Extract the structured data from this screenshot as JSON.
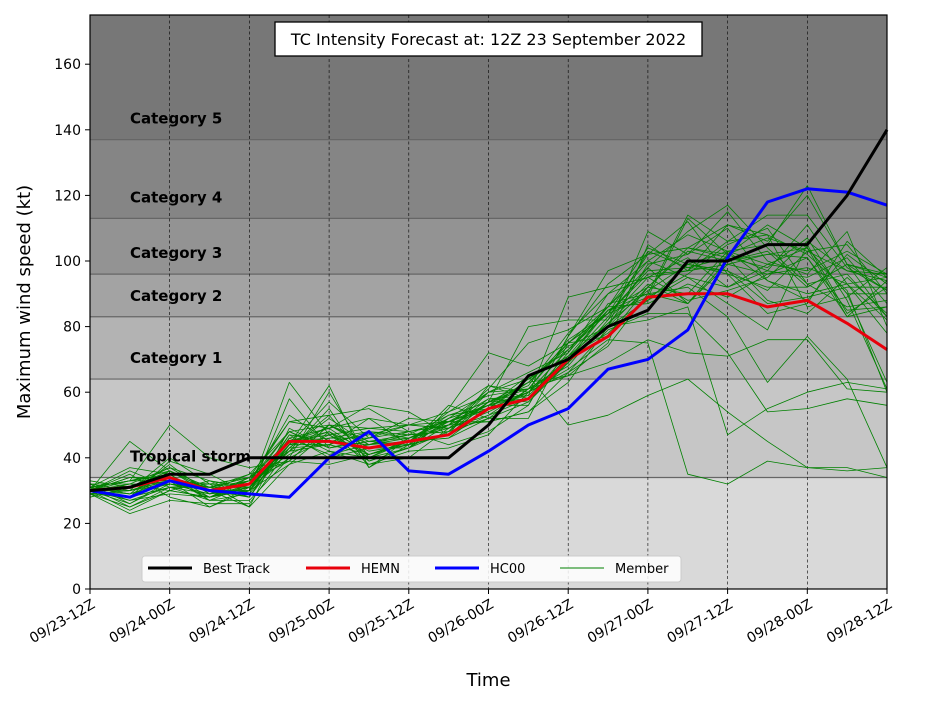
{
  "chart_data": {
    "type": "line",
    "title": "TC Intensity Forecast at: 12Z 23 September 2022",
    "xlabel": "Time",
    "ylabel": "Maximum wind speed (kt)",
    "ylim": [
      0,
      175
    ],
    "yticks": [
      0,
      20,
      40,
      60,
      80,
      100,
      120,
      140,
      160
    ],
    "x_ticks": [
      "09/23-12Z",
      "09/24-00Z",
      "09/24-12Z",
      "09/25-00Z",
      "09/25-12Z",
      "09/26-00Z",
      "09/26-12Z",
      "09/27-00Z",
      "09/27-12Z",
      "09/28-00Z",
      "09/28-12Z"
    ],
    "grid": "vertical dashed",
    "legend_position": "bottom-left",
    "bands": [
      {
        "name": "",
        "from": 0,
        "to": 34,
        "color": "#d9d9d9"
      },
      {
        "name": "Tropical storm",
        "from": 34,
        "to": 64,
        "color": "#c6c6c6"
      },
      {
        "name": "Category 1",
        "from": 64,
        "to": 83,
        "color": "#b3b3b3"
      },
      {
        "name": "Category 2",
        "from": 83,
        "to": 96,
        "color": "#a3a3a3"
      },
      {
        "name": "Category 3",
        "from": 96,
        "to": 113,
        "color": "#939393"
      },
      {
        "name": "Category 4",
        "from": 113,
        "to": 137,
        "color": "#858585"
      },
      {
        "name": "Category 5",
        "from": 137,
        "to": 175,
        "color": "#777777"
      }
    ],
    "series": [
      {
        "name": "Best Track",
        "color": "#000000",
        "width": 3,
        "values": [
          30,
          31,
          35,
          35,
          40,
          40,
          40,
          40,
          40,
          40,
          50,
          65,
          70,
          80,
          85,
          100,
          100,
          105,
          105,
          120,
          140
        ]
      },
      {
        "name": "HEMN",
        "color": "#e8000b",
        "width": 3,
        "values": [
          30,
          31,
          34,
          30,
          32,
          45,
          45,
          43,
          45,
          47,
          55,
          58,
          70,
          77,
          89,
          90,
          90,
          86,
          88,
          81,
          73
        ]
      },
      {
        "name": "HC00",
        "color": "#0000ff",
        "width": 3,
        "values": [
          30,
          28,
          33,
          30,
          29,
          28,
          40,
          48,
          36,
          35,
          42,
          50,
          55,
          67,
          70,
          79,
          101,
          118,
          122,
          121,
          117
        ]
      },
      {
        "name": "Member",
        "color": "#008000",
        "width": 0.8,
        "members": [
          [
            31,
            33,
            36,
            29,
            30,
            63,
            47,
            41,
            44,
            51,
            56,
            59,
            89,
            92,
            95,
            97,
            106,
            114,
            114,
            98,
            91
          ],
          [
            29,
            25,
            31,
            27,
            27,
            40,
            60,
            40,
            45,
            46,
            55,
            58,
            71,
            85,
            92,
            104,
            101,
            98,
            107,
            88,
            61
          ],
          [
            30,
            35,
            28,
            25,
            31,
            43,
            44,
            48,
            47,
            48,
            60,
            66,
            72,
            86,
            98,
            109,
            117,
            104,
            93,
            96,
            83
          ],
          [
            32,
            30,
            40,
            32,
            31,
            45,
            49,
            52,
            44,
            56,
            52,
            61,
            75,
            84,
            89,
            113,
            102,
            97,
            95,
            101,
            87
          ],
          [
            28,
            31,
            33,
            30,
            25,
            49,
            43,
            45,
            46,
            52,
            56,
            63,
            65,
            75,
            105,
            97,
            111,
            108,
            102,
            91,
            60
          ],
          [
            30,
            27,
            31,
            29,
            33,
            41,
            47,
            49,
            48,
            44,
            48,
            56,
            77,
            93,
            102,
            104,
            102,
            107,
            103,
            97,
            96
          ],
          [
            31,
            29,
            38,
            29,
            34,
            42,
            55,
            37,
            44,
            47,
            57,
            63,
            75,
            84,
            96,
            97,
            99,
            102,
            101,
            83,
            86
          ],
          [
            30,
            26,
            33,
            28,
            32,
            53,
            45,
            47,
            50,
            49,
            58,
            57,
            70,
            80,
            109,
            102,
            115,
            100,
            96,
            109,
            80
          ],
          [
            32,
            32,
            32,
            31,
            28,
            46,
            41,
            44,
            45,
            54,
            62,
            58,
            69,
            87,
            90,
            92,
            83,
            63,
            77,
            64,
            37
          ],
          [
            29,
            28,
            36,
            30,
            30,
            38,
            48,
            38,
            42,
            43,
            47,
            60,
            73,
            86,
            100,
            108,
            103,
            105,
            123,
            99,
            83
          ],
          [
            30,
            34,
            33,
            28,
            31,
            43,
            52,
            44,
            46,
            49,
            54,
            60,
            70,
            85,
            88,
            95,
            92,
            99,
            104,
            90,
            63
          ],
          [
            31,
            33,
            35,
            27,
            29,
            58,
            43,
            46,
            48,
            50,
            60,
            64,
            71,
            81,
            93,
            87,
            102,
            111,
            104,
            83,
            94
          ],
          [
            30,
            30,
            34,
            31,
            33,
            39,
            50,
            49,
            50,
            51,
            56,
            56,
            77,
            97,
            102,
            104,
            111,
            106,
            120,
            99,
            91
          ],
          [
            29,
            23,
            27,
            26,
            26,
            43,
            53,
            55,
            48,
            50,
            51,
            54,
            66,
            74,
            90,
            114,
            106,
            108,
            86,
            89,
            98
          ],
          [
            31,
            25,
            30,
            28,
            30,
            45,
            47,
            39,
            43,
            48,
            52,
            52,
            75,
            77,
            92,
            90,
            103,
            94,
            90,
            93,
            78
          ],
          [
            30,
            24,
            30,
            28,
            33,
            51,
            49,
            41,
            45,
            53,
            57,
            62,
            78,
            90,
            100,
            95,
            87,
            79,
            105,
            84,
            92
          ],
          [
            30,
            28,
            39,
            35,
            29,
            44,
            57,
            46,
            50,
            54,
            59,
            61,
            76,
            84,
            97,
            98,
            101,
            88,
            84,
            95,
            84
          ],
          [
            33,
            31,
            37,
            33,
            28,
            47,
            40,
            43,
            43,
            50,
            61,
            75,
            79,
            86,
            104,
            99,
            96,
            92,
            92,
            99,
            95
          ],
          [
            31,
            29,
            32,
            29,
            31,
            45,
            46,
            48,
            46,
            50,
            56,
            60,
            70,
            80,
            99,
            102,
            110,
            94,
            88,
            102,
            93
          ],
          [
            30,
            32,
            37,
            30,
            35,
            48,
            50,
            45,
            44,
            47,
            62,
            60,
            73,
            84,
            102,
            112,
            96,
            84,
            87,
            106,
            95
          ],
          [
            31,
            27,
            29,
            28,
            31,
            40,
            46,
            46,
            52,
            51,
            58,
            59,
            70,
            83,
            98,
            87,
            100,
            103,
            92,
            99,
            96
          ],
          [
            29,
            30,
            34,
            27,
            32,
            48,
            43,
            45,
            47,
            53,
            55,
            63,
            74,
            80,
            88,
            99,
            97,
            91,
            103,
            105,
            90
          ],
          [
            30,
            31,
            36,
            30,
            28,
            44,
            44,
            52,
            50,
            49,
            57,
            58,
            72,
            90,
            95,
            101,
            92,
            97,
            111,
            93,
            82
          ],
          [
            31,
            37,
            35,
            28,
            34,
            42,
            50,
            43,
            45,
            52,
            60,
            61,
            69,
            81,
            91,
            99,
            103,
            99,
            97,
            103,
            96
          ],
          [
            30,
            30,
            33,
            32,
            34,
            45,
            48,
            42,
            44,
            47,
            53,
            58,
            71,
            78,
            89,
            96,
            105,
            110,
            93,
            86,
            88
          ],
          [
            29,
            32,
            30,
            33,
            31,
            44,
            62,
            37,
            46,
            51,
            55,
            64,
            73,
            85,
            90,
            87,
            99,
            96,
            98,
            93,
            95
          ],
          [
            30,
            45,
            36,
            31,
            35,
            39,
            38,
            41,
            45,
            46,
            52,
            57,
            69,
            80,
            92,
            103,
            100,
            102,
            104,
            90,
            90
          ],
          [
            32,
            26,
            32,
            30,
            30,
            47,
            45,
            44,
            47,
            48,
            57,
            61,
            68,
            82,
            95,
            88,
            91,
            95,
            106,
            97,
            94
          ],
          [
            30,
            36,
            31,
            31,
            34,
            51,
            53,
            39,
            43,
            55,
            72,
            68,
            75,
            86,
            87,
            93,
            89,
            96,
            101,
            85,
            86
          ],
          [
            31,
            33,
            33,
            25,
            30,
            46,
            49,
            56,
            54,
            47,
            57,
            80,
            82,
            82,
            103,
            98,
            97,
            87,
            89,
            92,
            92
          ],
          [
            30,
            28,
            31,
            32,
            25,
            38,
            42,
            38,
            40,
            49,
            53,
            61,
            65,
            69,
            76,
            72,
            71,
            76,
            76,
            61,
            60
          ],
          [
            30,
            34,
            34,
            30,
            33,
            48,
            42,
            40,
            43,
            52,
            56,
            65,
            50,
            53,
            59,
            64,
            54,
            45,
            37,
            37,
            34
          ],
          [
            30,
            33,
            50,
            40,
            37,
            39,
            50,
            44,
            48,
            51,
            55,
            60,
            67,
            76,
            75,
            35,
            32,
            39,
            37,
            36,
            37
          ],
          [
            30,
            29,
            33,
            31,
            31,
            44,
            48,
            40,
            46,
            51,
            51,
            54,
            63,
            80,
            82,
            86,
            47,
            55,
            60,
            63,
            61
          ],
          [
            29,
            30,
            32,
            30,
            30,
            42,
            44,
            41,
            45,
            50,
            55,
            60,
            66,
            79,
            84,
            84,
            72,
            54,
            55,
            58,
            56
          ]
        ]
      }
    ]
  }
}
